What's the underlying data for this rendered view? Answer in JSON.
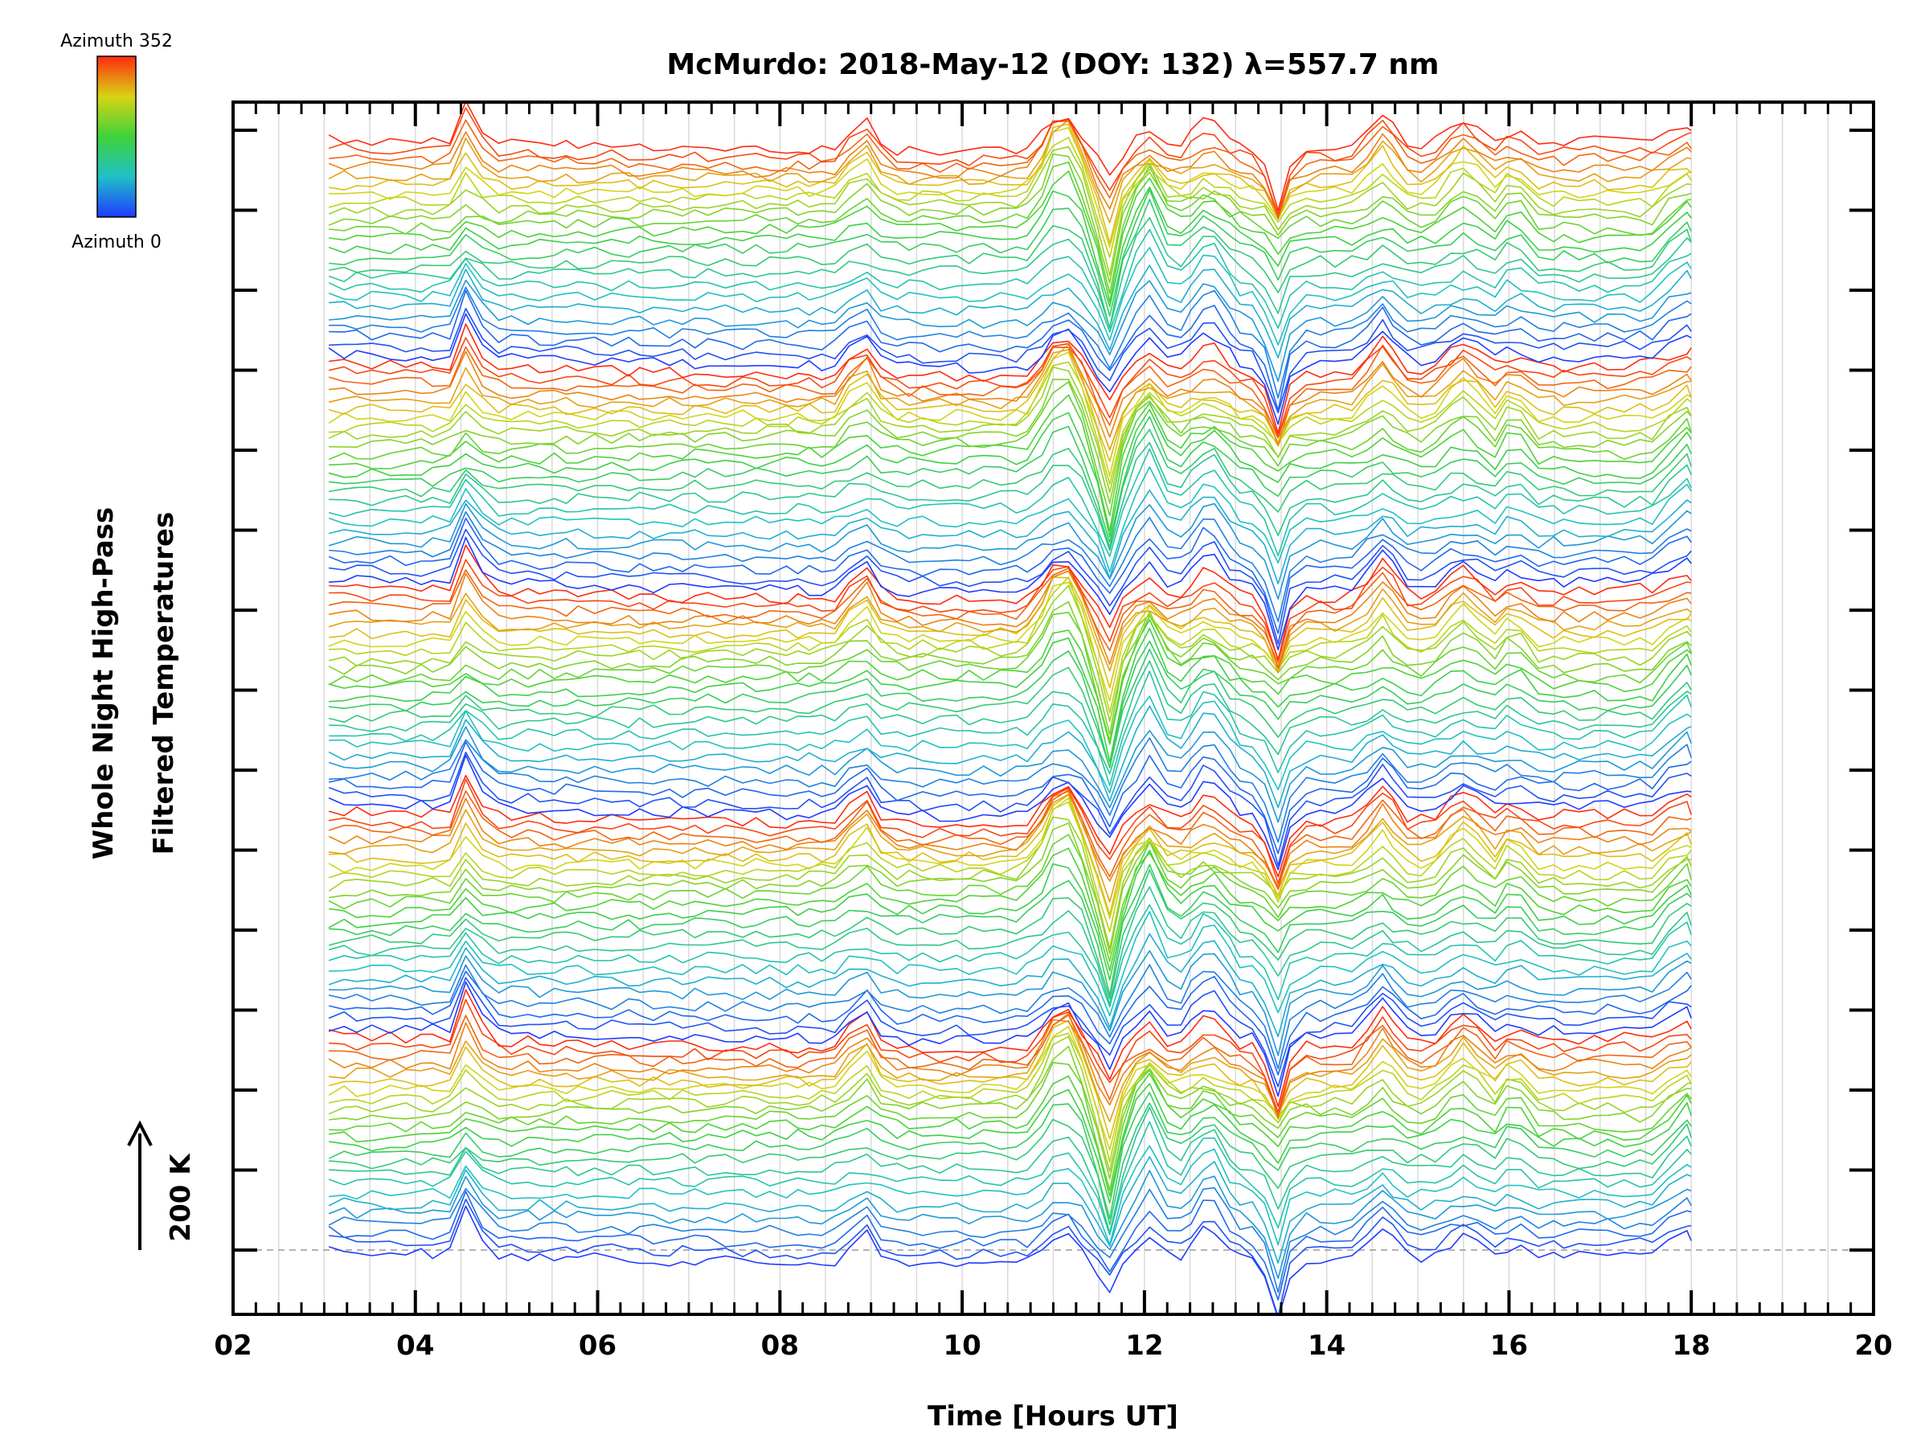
{
  "chart_data": {
    "type": "line",
    "title": "McMurdo: 2018-May-12 (DOY: 132) λ=557.7 nm",
    "xlabel": "Time [Hours UT]",
    "ylabel_line1": "Whole Night High-Pass",
    "ylabel_line2": "Filtered Temperatures",
    "scale_label": "200 K",
    "xlim": [
      2,
      20
    ],
    "x_ticks": [
      "02",
      "04",
      "06",
      "08",
      "10",
      "12",
      "14",
      "16",
      "18",
      "20"
    ],
    "y_major_tick_count": 15,
    "data_range_hours": [
      3.05,
      18.0
    ],
    "series_count": 120,
    "groups": 5,
    "colorbar": {
      "top_label": "Azimuth  352",
      "bottom_label": "Azimuth  0",
      "azimuth_min": 0,
      "azimuth_max": 352
    },
    "features": [
      {
        "x": 4.6,
        "amplitude": 55
      },
      {
        "x": 8.9,
        "amplitude": 40
      },
      {
        "x": 11.1,
        "amplitude": 70
      },
      {
        "x": 11.6,
        "amplitude": -80
      },
      {
        "x": 12.05,
        "amplitude": 60
      },
      {
        "x": 12.7,
        "amplitude": 45
      },
      {
        "x": 13.45,
        "amplitude": -65
      },
      {
        "x": 14.6,
        "amplitude": 40
      },
      {
        "x": 15.5,
        "amplitude": 35
      },
      {
        "x": 16.05,
        "amplitude": 35
      },
      {
        "x": 17.9,
        "amplitude": 45
      }
    ],
    "colors": {
      "background": "#ffffff",
      "axis": "#000000",
      "grid": "#d4d4d4",
      "baseline": "#9a9a9a"
    }
  }
}
